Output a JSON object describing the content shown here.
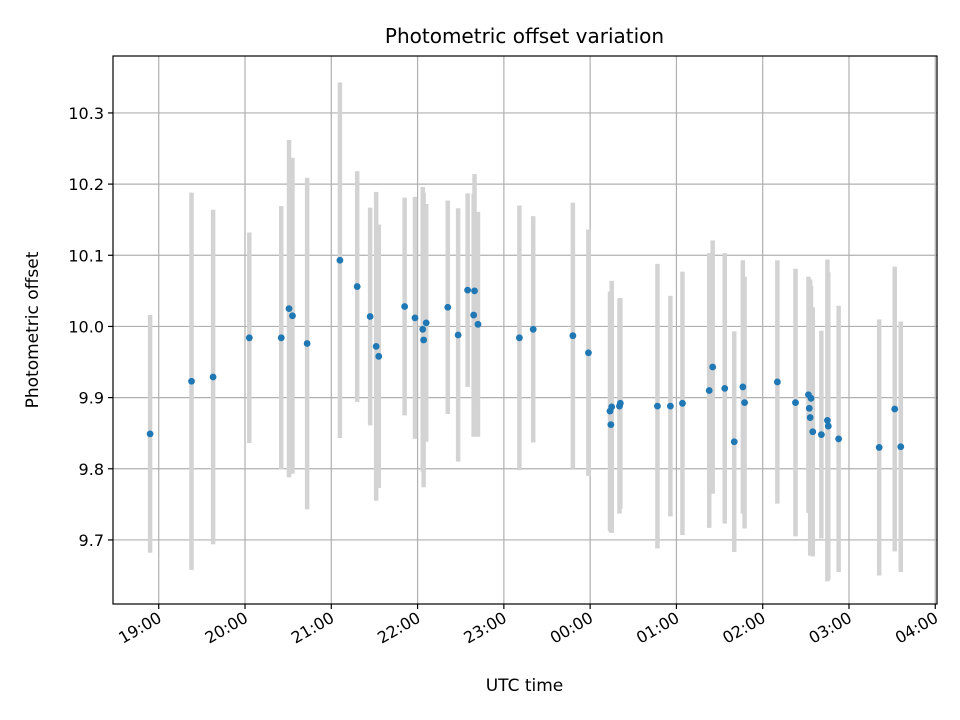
{
  "chart_data": {
    "type": "scatter",
    "title": "Photometric offset variation",
    "xlabel": "UTC time",
    "ylabel": "Photometric offset",
    "grid": true,
    "x_unit": "hours since 19:00 UTC",
    "xlim": [
      -0.53,
      9.02
    ],
    "ylim": [
      9.61,
      10.38
    ],
    "xticks": [
      0,
      1,
      2,
      3,
      4,
      5,
      6,
      7,
      8,
      9
    ],
    "xtick_labels": [
      "19:00",
      "20:00",
      "21:00",
      "22:00",
      "23:00",
      "00:00",
      "01:00",
      "02:00",
      "03:00",
      "04:00"
    ],
    "yticks": [
      9.7,
      9.8,
      9.9,
      10.0,
      10.1,
      10.2,
      10.3
    ],
    "ytick_labels": [
      "9.7",
      "9.8",
      "9.9",
      "10.0",
      "10.1",
      "10.2",
      "10.3"
    ],
    "colors": {
      "points": "#1f77b4",
      "errorbars": "#d3d3d3",
      "grid": "#b0b0b0",
      "axes": "#000000"
    },
    "series": [
      {
        "name": "Photometric offset",
        "x": [
          -0.1,
          0.38,
          0.63,
          1.05,
          1.42,
          1.51,
          1.55,
          1.72,
          2.1,
          2.3,
          2.45,
          2.52,
          2.55,
          2.85,
          2.97,
          3.06,
          3.07,
          3.1,
          3.35,
          3.47,
          3.58,
          3.65,
          3.66,
          3.7,
          4.18,
          4.34,
          4.8,
          4.98,
          5.23,
          5.24,
          5.25,
          5.34,
          5.35,
          5.78,
          5.93,
          6.07,
          6.38,
          6.42,
          6.56,
          6.67,
          6.77,
          6.79,
          7.17,
          7.38,
          7.53,
          7.54,
          7.55,
          7.56,
          7.58,
          7.68,
          7.75,
          7.76,
          7.88,
          8.35,
          8.53,
          8.6
        ],
        "y": [
          9.849,
          9.923,
          9.929,
          9.984,
          9.984,
          10.025,
          10.015,
          9.976,
          10.093,
          10.056,
          10.014,
          9.972,
          9.958,
          10.028,
          10.012,
          9.996,
          9.981,
          10.005,
          10.027,
          9.988,
          10.051,
          10.016,
          10.05,
          10.003,
          9.984,
          9.996,
          9.987,
          9.963,
          9.881,
          9.862,
          9.887,
          9.888,
          9.892,
          9.888,
          9.888,
          9.892,
          9.91,
          9.943,
          9.913,
          9.838,
          9.915,
          9.893,
          9.922,
          9.893,
          9.904,
          9.885,
          9.872,
          9.899,
          9.852,
          9.848,
          9.868,
          9.86,
          9.842,
          9.83,
          9.884,
          9.831
        ],
        "yerr": [
          0.167,
          0.265,
          0.235,
          0.148,
          0.185,
          0.237,
          0.222,
          0.233,
          0.25,
          0.162,
          0.153,
          0.217,
          0.185,
          0.153,
          0.17,
          0.2,
          0.207,
          0.167,
          0.15,
          0.178,
          0.136,
          0.171,
          0.164,
          0.158,
          0.186,
          0.159,
          0.187,
          0.173,
          0.168,
          0.151,
          0.177,
          0.151,
          0.148,
          0.2,
          0.155,
          0.185,
          0.193,
          0.178,
          0.19,
          0.155,
          0.178,
          0.177,
          0.171,
          0.188,
          0.166,
          0.144,
          0.194,
          0.158,
          0.175,
          0.146,
          0.226,
          0.216,
          0.187,
          0.18,
          0.2,
          0.176
        ]
      }
    ]
  }
}
